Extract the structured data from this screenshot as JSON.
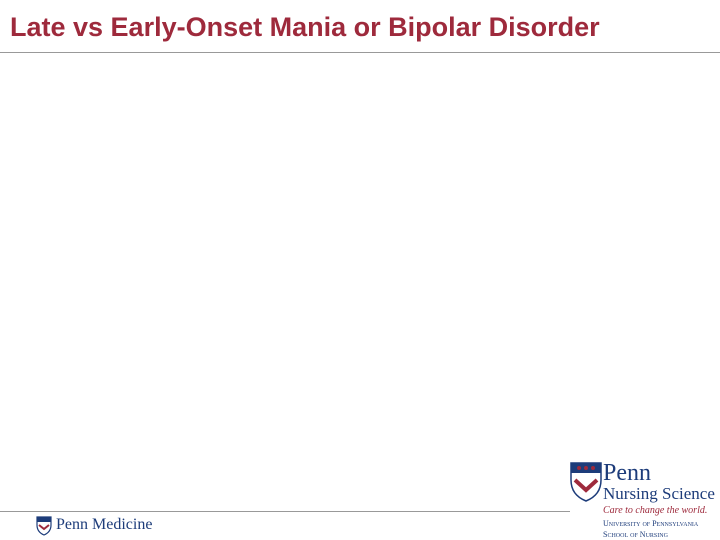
{
  "slide": {
    "title": "Late vs Early-Onset Mania or Bipolar Disorder",
    "footer_left": {
      "logo_text": "Penn Medicine"
    },
    "footer_right": {
      "name": "Penn",
      "subtitle": "Nursing Science",
      "tagline": "Care to change the world.",
      "university": "University of Pennsylvania",
      "school": "School of Nursing"
    }
  }
}
